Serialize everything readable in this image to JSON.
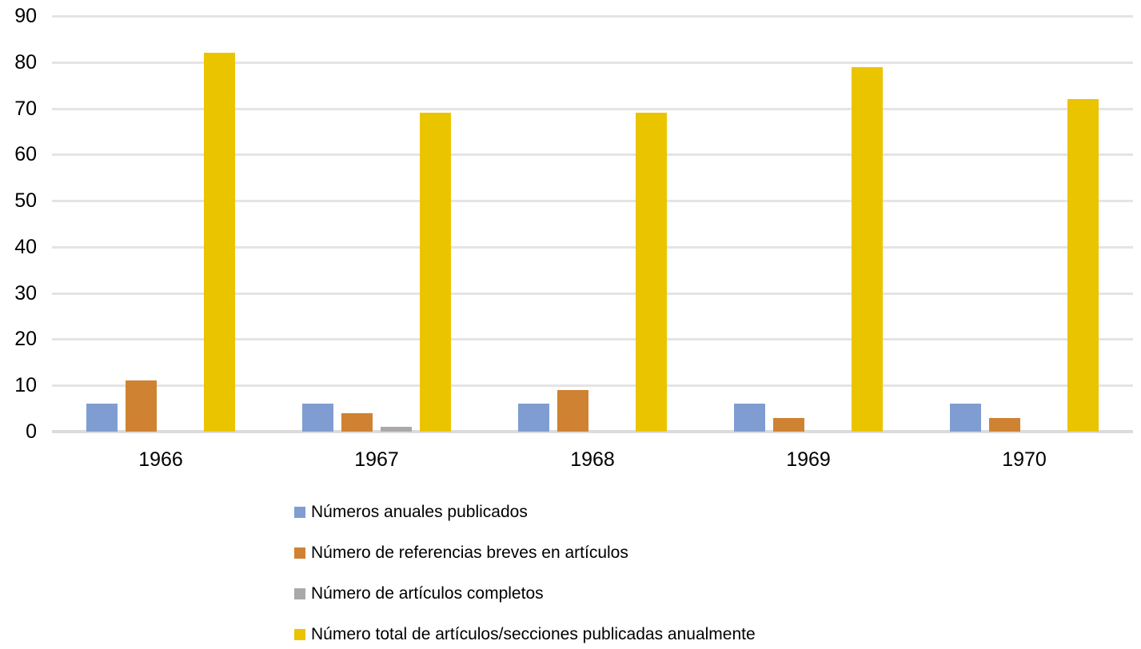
{
  "chart_data": {
    "type": "bar",
    "title": "",
    "xlabel": "",
    "ylabel": "",
    "categories": [
      "1966",
      "1967",
      "1968",
      "1969",
      "1970"
    ],
    "series": [
      {
        "name": "Números anuales publicados",
        "color": "#7F9DD1",
        "values": [
          6,
          6,
          6,
          6,
          6
        ]
      },
      {
        "name": "Número de referencias breves en artículos",
        "color": "#CF8232",
        "values": [
          11,
          4,
          9,
          3,
          3
        ]
      },
      {
        "name": "Número de artículos completos",
        "color": "#ABA8A8",
        "values": [
          0,
          1,
          0,
          0,
          0
        ]
      },
      {
        "name": "Número total de artículos/secciones publicadas anualmente",
        "color": "#EBC400",
        "values": [
          82,
          69,
          69,
          79,
          72
        ]
      }
    ],
    "ylim": [
      0,
      90
    ],
    "yticks": [
      0,
      10,
      20,
      30,
      40,
      50,
      60,
      70,
      80,
      90
    ],
    "grid": true,
    "gridline_color": "#E4E4E4",
    "axis_text_color": "#000000",
    "background_color": "#FFFFFF",
    "legend_position": "bottom-left"
  }
}
